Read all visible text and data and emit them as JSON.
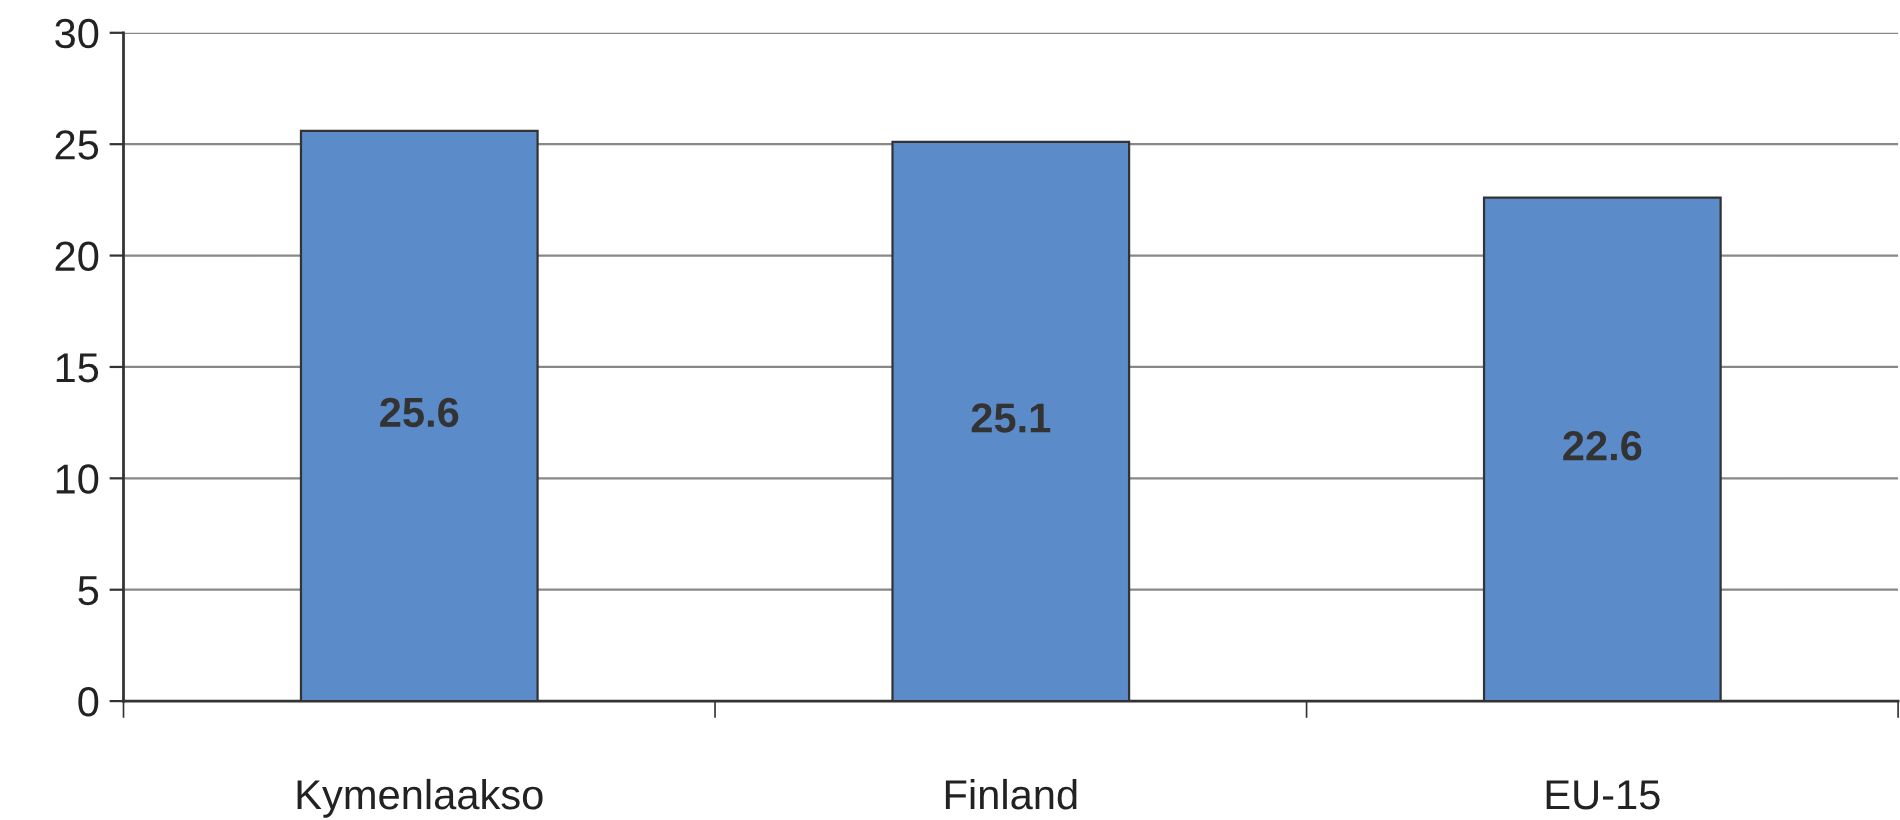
{
  "chart_data": {
    "type": "bar",
    "categories": [
      "Kymenlaakso",
      "Finland",
      "EU-15"
    ],
    "values": [
      25.6,
      25.1,
      22.6
    ],
    "color": "#5b8bc9",
    "ylim": [
      0,
      30
    ],
    "yticks": [
      0,
      5,
      10,
      15,
      20,
      25,
      30
    ],
    "grid": "y",
    "data_labels": true
  }
}
